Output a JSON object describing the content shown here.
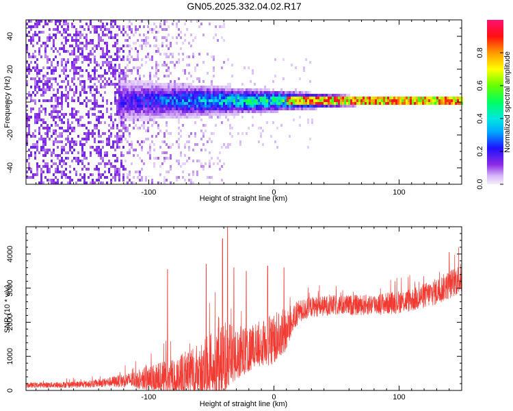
{
  "title": "GN05.2025.332.04.02.R17",
  "colors": {
    "line": "#f03a32",
    "frame": "#000000",
    "background": "#ffffff"
  },
  "chart_data": [
    {
      "type": "heatmap",
      "xlabel": "Height of straight line (km)",
      "ylabel": "Frequency (Hz)",
      "xlim": [
        -198,
        150
      ],
      "ylim": [
        -50,
        50
      ],
      "xticks": [
        -100,
        0,
        100
      ],
      "xtick_labels": [
        "-100",
        "0",
        "100"
      ],
      "yticks": [
        -40,
        -20,
        0,
        20,
        40
      ],
      "ytick_labels": [
        "-40",
        "-20",
        "0",
        "20",
        "40"
      ],
      "colorbar": {
        "label": "Normalized spectral amplitude",
        "range": [
          0,
          1
        ],
        "ticks": [
          0,
          0.2,
          0.4,
          0.6,
          0.8
        ],
        "tick_labels": [
          "0.0",
          "0.2",
          "0.4",
          "0.6",
          "0.8"
        ],
        "colormap": "rainbow: violet-blue-cyan-green-yellow-red-magenta"
      },
      "features": {
        "broadband_noise_end_km": -40,
        "dense_noise_end_km": -120,
        "carrier_freq_hz": 1.5,
        "carrier_start_km": -120,
        "peak_amplitude": 0.95
      }
    },
    {
      "type": "line",
      "xlabel": "Height of straight line (km)",
      "ylabel": "SNR (10 * v/v)",
      "xlim": [
        -198,
        150
      ],
      "ylim": [
        0,
        4800
      ],
      "xticks": [
        -100,
        0,
        100
      ],
      "xtick_labels": [
        "-100",
        "0",
        "100"
      ],
      "yticks": [
        0,
        1000,
        2000,
        3000,
        4000
      ],
      "ytick_labels": [
        "0",
        "1000",
        "2000",
        "3000",
        "4000"
      ],
      "series": [
        {
          "name": "SNR",
          "color": "#f03a32",
          "envelope": {
            "x": [
              -198,
              -150,
              -130,
              -110,
              -100,
              -85,
              -70,
              -60,
              -50,
              -40,
              -30,
              -20,
              -10,
              0,
              10,
              15,
              20,
              30,
              50,
              70,
              90,
              110,
              130,
              150
            ],
            "base": [
              150,
              180,
              250,
              320,
              380,
              450,
              500,
              600,
              800,
              900,
              1100,
              1200,
              1400,
              1500,
              1800,
              2200,
              2300,
              2450,
              2500,
              2500,
              2550,
              2650,
              2900,
              3300
            ],
            "spread": [
              150,
              200,
              300,
              500,
              800,
              1000,
              1300,
              1500,
              1800,
              2200,
              1600,
              1300,
              1400,
              1500,
              1300,
              900,
              700,
              600,
              600,
              600,
              650,
              700,
              800,
              900
            ]
          },
          "spikes": [
            {
              "x": -37,
              "y": 4800
            },
            {
              "x": -41,
              "y": 4450
            },
            {
              "x": -85,
              "y": 3550
            },
            {
              "x": -54,
              "y": 3700
            },
            {
              "x": -32,
              "y": 3600
            },
            {
              "x": -22,
              "y": 3500
            },
            {
              "x": -5,
              "y": 3650
            },
            {
              "x": 8,
              "y": 3600
            },
            {
              "x": 140,
              "y": 4050
            }
          ]
        }
      ]
    }
  ]
}
